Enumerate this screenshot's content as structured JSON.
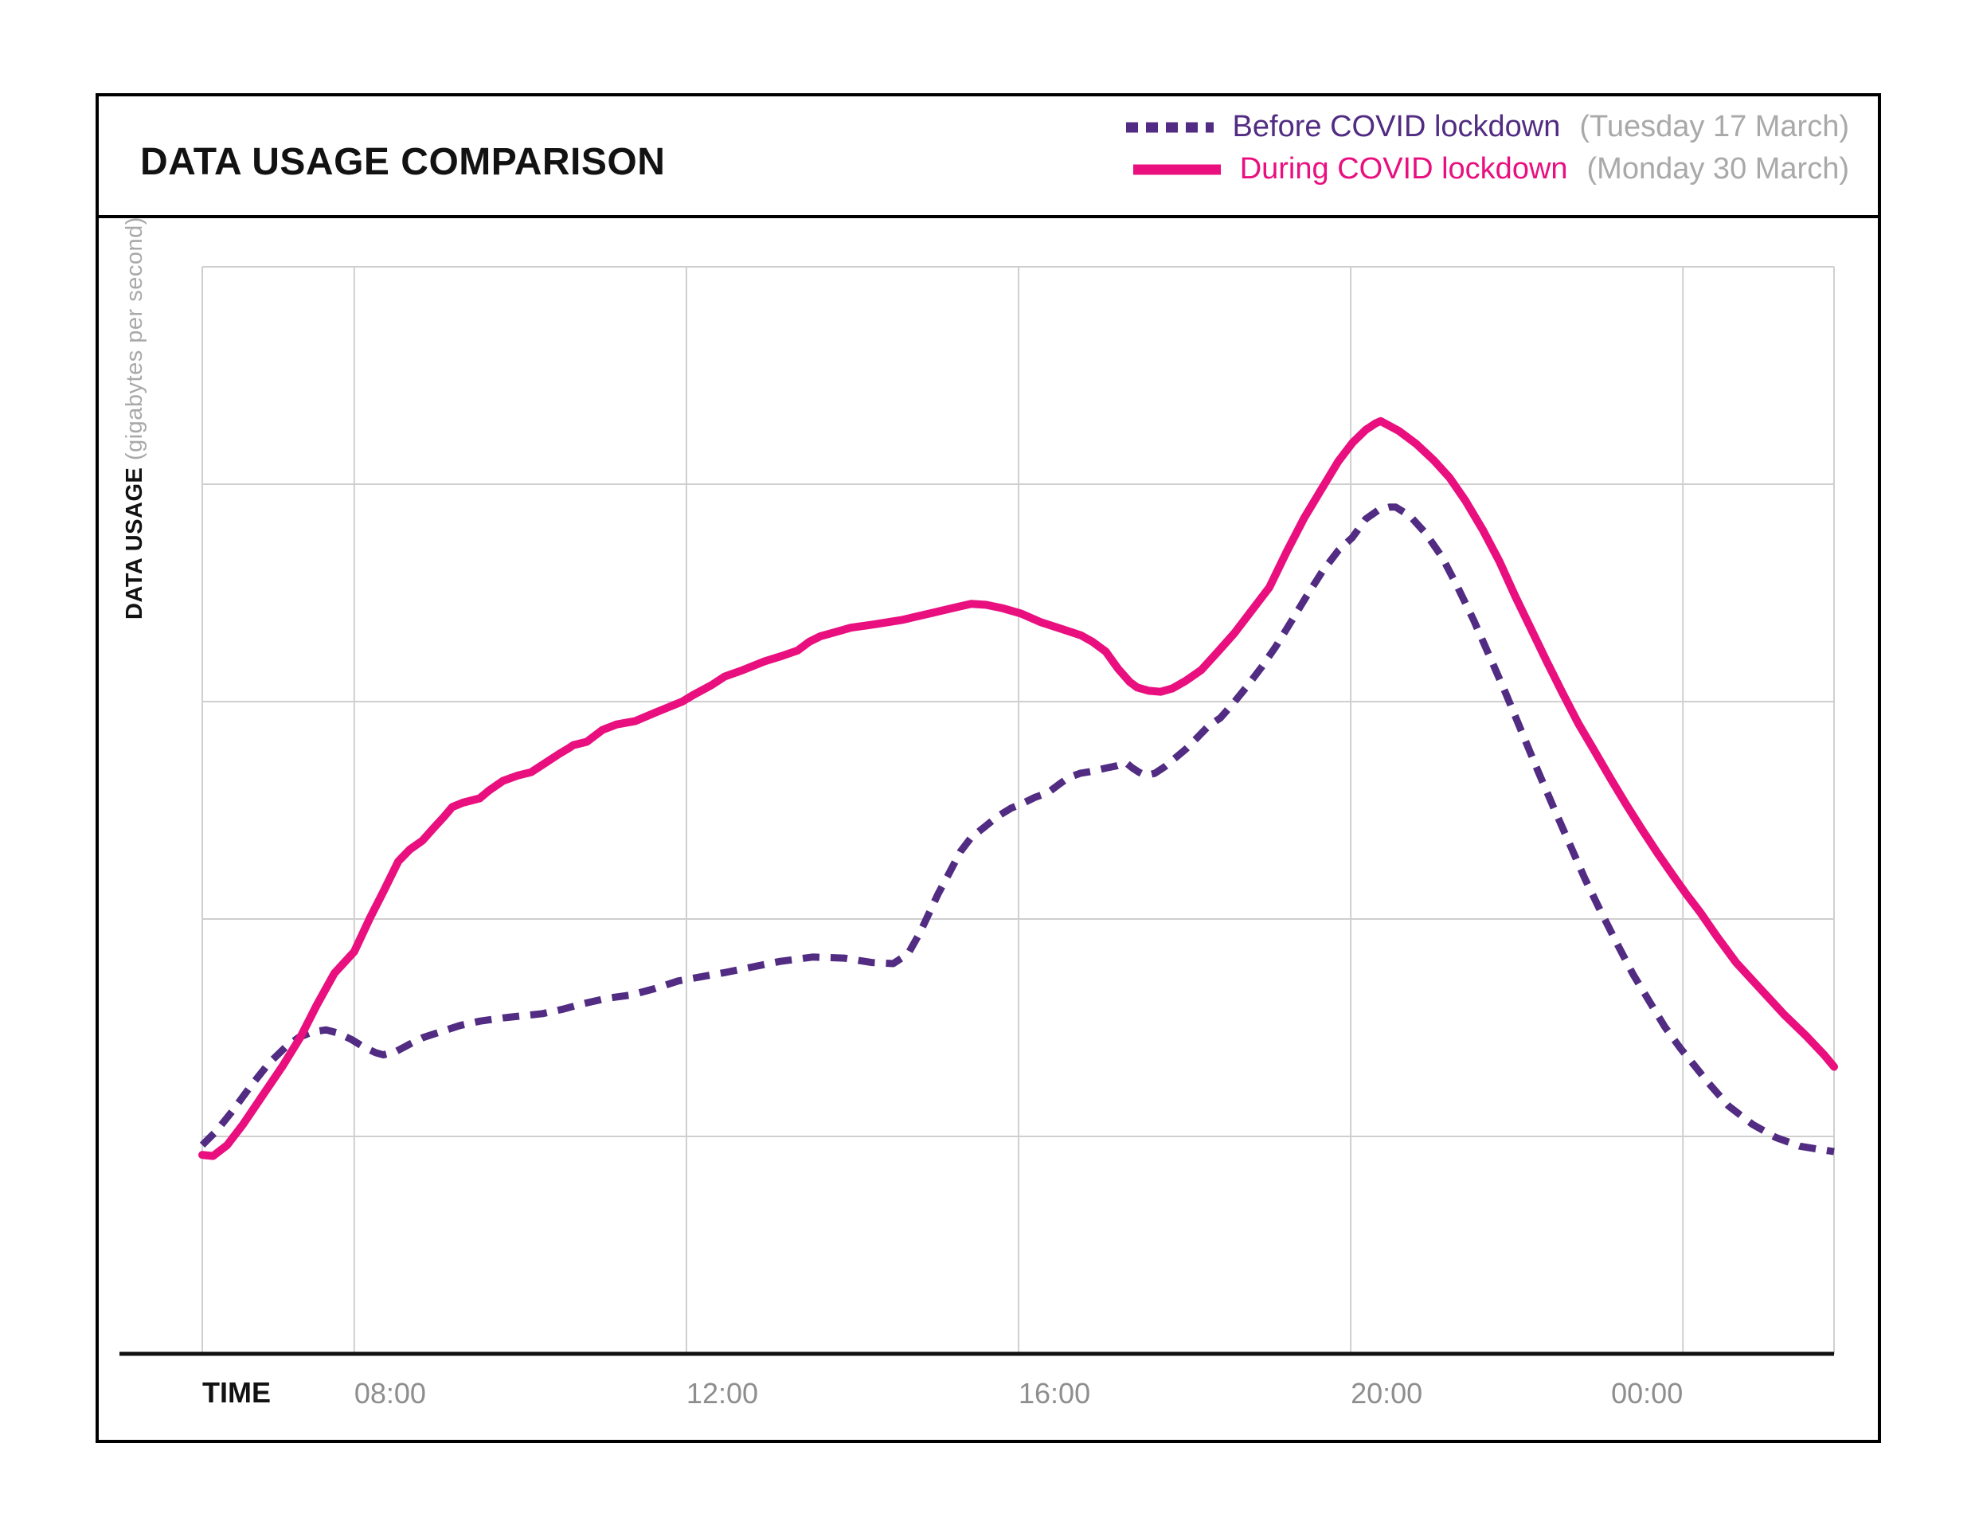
{
  "header": {
    "title": "DATA USAGE COMPARISON"
  },
  "legend": [
    {
      "label": "Before COVID lockdown",
      "date": "(Tuesday 17 March)",
      "style": "dashed",
      "color": "#512C82"
    },
    {
      "label": "During COVID lockdown",
      "date": "(Monday 30 March)",
      "style": "solid",
      "color": "#E90F7F"
    }
  ],
  "axes": {
    "x_title": "TIME",
    "y_title_main": "DATA USAGE",
    "y_title_sub": "(gigabytes per second)"
  },
  "colors": {
    "pink": "#E90F7F",
    "purple": "#512C82",
    "gray_text": "#A9A9A9",
    "tick_text": "#8E8E8E",
    "gridline": "#CFCFCF",
    "axis": "#111111",
    "border": "#000000"
  },
  "chart_data": {
    "type": "line",
    "title": "DATA USAGE COMPARISON",
    "xlabel": "TIME",
    "ylabel": "DATA USAGE (gigabytes per second)",
    "x_unit": "hour of day (24 = midnight, continues past midnight)",
    "y_unit": "relative data usage (0-100, unlabeled axis)",
    "x_range": [
      6.17,
      25.82
    ],
    "y_range": [
      0,
      100
    ],
    "grid": true,
    "y_gridlines": [
      20,
      40,
      60,
      80,
      100
    ],
    "legend_position": "top-right",
    "x_ticks": [
      {
        "hour": 8,
        "label": "08:00",
        "align": "left"
      },
      {
        "hour": 12,
        "label": "12:00",
        "align": "left"
      },
      {
        "hour": 16,
        "label": "16:00",
        "align": "left"
      },
      {
        "hour": 20,
        "label": "20:00",
        "align": "left"
      },
      {
        "hour": 24,
        "label": "00:00",
        "align": "right"
      }
    ],
    "series": [
      {
        "name": "Before COVID lockdown (Tuesday 17 March)",
        "style": "dashed",
        "color": "#512C82",
        "points": [
          [
            6.17,
            19.2
          ],
          [
            6.34,
            20.5
          ],
          [
            6.53,
            22.3
          ],
          [
            6.75,
            24.6
          ],
          [
            6.97,
            26.7
          ],
          [
            7.17,
            28.2
          ],
          [
            7.33,
            29.1
          ],
          [
            7.49,
            29.6
          ],
          [
            7.66,
            29.8
          ],
          [
            7.81,
            29.5
          ],
          [
            7.97,
            28.9
          ],
          [
            8.12,
            28.2
          ],
          [
            8.26,
            27.7
          ],
          [
            8.35,
            27.5
          ],
          [
            8.5,
            27.8
          ],
          [
            8.67,
            28.5
          ],
          [
            8.83,
            29.1
          ],
          [
            9.03,
            29.6
          ],
          [
            9.27,
            30.2
          ],
          [
            9.51,
            30.6
          ],
          [
            9.79,
            30.9
          ],
          [
            10.03,
            31.1
          ],
          [
            10.27,
            31.3
          ],
          [
            10.51,
            31.7
          ],
          [
            10.75,
            32.2
          ],
          [
            11.04,
            32.7
          ],
          [
            11.33,
            33
          ],
          [
            11.62,
            33.6
          ],
          [
            11.9,
            34.3
          ],
          [
            12.19,
            34.7
          ],
          [
            12.48,
            35.1
          ],
          [
            12.8,
            35.6
          ],
          [
            13.13,
            36.1
          ],
          [
            13.52,
            36.5
          ],
          [
            13.9,
            36.4
          ],
          [
            14.23,
            36
          ],
          [
            14.49,
            35.9
          ],
          [
            14.67,
            36.8
          ],
          [
            14.81,
            38.7
          ],
          [
            14.92,
            40.5
          ],
          [
            15.03,
            42.3
          ],
          [
            15.17,
            44.3
          ],
          [
            15.3,
            46.2
          ],
          [
            15.43,
            47.5
          ],
          [
            15.58,
            48.4
          ],
          [
            15.74,
            49.4
          ],
          [
            15.91,
            50.2
          ],
          [
            16.04,
            50.6
          ],
          [
            16.2,
            51.2
          ],
          [
            16.35,
            51.6
          ],
          [
            16.49,
            52.4
          ],
          [
            16.6,
            53
          ],
          [
            16.74,
            53.4
          ],
          [
            16.89,
            53.6
          ],
          [
            17.06,
            53.9
          ],
          [
            17.19,
            54.1
          ],
          [
            17.29,
            54.4
          ],
          [
            17.37,
            53.9
          ],
          [
            17.45,
            53.5
          ],
          [
            17.53,
            53.2
          ],
          [
            17.64,
            53.4
          ],
          [
            17.76,
            54
          ],
          [
            17.87,
            54.7
          ],
          [
            18.01,
            55.6
          ],
          [
            18.14,
            56.6
          ],
          [
            18.28,
            57.7
          ],
          [
            18.43,
            58.5
          ],
          [
            18.58,
            59.8
          ],
          [
            18.75,
            61.4
          ],
          [
            18.93,
            63.2
          ],
          [
            19.1,
            65.1
          ],
          [
            19.27,
            67.2
          ],
          [
            19.46,
            69.6
          ],
          [
            19.66,
            72
          ],
          [
            19.85,
            73.9
          ],
          [
            20.02,
            75.1
          ],
          [
            20.18,
            76.8
          ],
          [
            20.33,
            77.6
          ],
          [
            20.47,
            77.9
          ],
          [
            20.54,
            77.9
          ],
          [
            20.71,
            77.1
          ],
          [
            20.9,
            75.5
          ],
          [
            21.1,
            73.3
          ],
          [
            21.29,
            70.5
          ],
          [
            21.48,
            67.5
          ],
          [
            21.67,
            64.2
          ],
          [
            21.87,
            60.7
          ],
          [
            22.06,
            57.2
          ],
          [
            22.25,
            53.7
          ],
          [
            22.44,
            50.3
          ],
          [
            22.63,
            47
          ],
          [
            22.82,
            43.7
          ],
          [
            23.01,
            40.7
          ],
          [
            23.21,
            37.7
          ],
          [
            23.4,
            34.9
          ],
          [
            23.59,
            32.5
          ],
          [
            23.78,
            30.1
          ],
          [
            23.97,
            28.1
          ],
          [
            24.12,
            26.7
          ],
          [
            24.31,
            24.9
          ],
          [
            24.55,
            22.8
          ],
          [
            24.84,
            21.1
          ],
          [
            25.12,
            19.9
          ],
          [
            25.41,
            19.1
          ],
          [
            25.65,
            18.8
          ],
          [
            25.82,
            18.6
          ]
        ]
      },
      {
        "name": "During COVID lockdown (Monday 30 March)",
        "style": "solid",
        "color": "#E90F7F",
        "points": [
          [
            6.17,
            18.3
          ],
          [
            6.3,
            18.2
          ],
          [
            6.47,
            19.2
          ],
          [
            6.66,
            21.1
          ],
          [
            6.9,
            23.8
          ],
          [
            7.14,
            26.5
          ],
          [
            7.35,
            29.1
          ],
          [
            7.55,
            32.1
          ],
          [
            7.76,
            35
          ],
          [
            8,
            37
          ],
          [
            8.19,
            40.1
          ],
          [
            8.35,
            42.5
          ],
          [
            8.53,
            45.3
          ],
          [
            8.67,
            46.4
          ],
          [
            8.82,
            47.2
          ],
          [
            8.96,
            48.4
          ],
          [
            9.08,
            49.4
          ],
          [
            9.18,
            50.3
          ],
          [
            9.31,
            50.7
          ],
          [
            9.51,
            51.1
          ],
          [
            9.62,
            51.8
          ],
          [
            9.79,
            52.7
          ],
          [
            9.97,
            53.2
          ],
          [
            10.13,
            53.5
          ],
          [
            10.31,
            54.4
          ],
          [
            10.47,
            55.2
          ],
          [
            10.58,
            55.7
          ],
          [
            10.64,
            56
          ],
          [
            10.8,
            56.3
          ],
          [
            10.99,
            57.4
          ],
          [
            11.16,
            57.9
          ],
          [
            11.38,
            58.2
          ],
          [
            11.66,
            59.1
          ],
          [
            11.95,
            60
          ],
          [
            12.08,
            60.6
          ],
          [
            12.3,
            61.5
          ],
          [
            12.46,
            62.3
          ],
          [
            12.68,
            62.9
          ],
          [
            12.94,
            63.7
          ],
          [
            13.15,
            64.2
          ],
          [
            13.34,
            64.7
          ],
          [
            13.48,
            65.5
          ],
          [
            13.61,
            66
          ],
          [
            13.8,
            66.4
          ],
          [
            13.98,
            66.8
          ],
          [
            14.26,
            67.1
          ],
          [
            14.59,
            67.5
          ],
          [
            14.93,
            68.1
          ],
          [
            15.26,
            68.7
          ],
          [
            15.43,
            69
          ],
          [
            15.61,
            68.9
          ],
          [
            15.8,
            68.6
          ],
          [
            16.03,
            68.1
          ],
          [
            16.27,
            67.3
          ],
          [
            16.51,
            66.7
          ],
          [
            16.75,
            66.1
          ],
          [
            16.89,
            65.5
          ],
          [
            17.05,
            64.6
          ],
          [
            17.2,
            63
          ],
          [
            17.34,
            61.8
          ],
          [
            17.43,
            61.3
          ],
          [
            17.57,
            61
          ],
          [
            17.71,
            60.9
          ],
          [
            17.85,
            61.2
          ],
          [
            18.01,
            61.9
          ],
          [
            18.2,
            62.9
          ],
          [
            18.39,
            64.5
          ],
          [
            18.6,
            66.3
          ],
          [
            18.81,
            68.4
          ],
          [
            19.02,
            70.5
          ],
          [
            19.23,
            73.8
          ],
          [
            19.44,
            76.9
          ],
          [
            19.66,
            79.7
          ],
          [
            19.85,
            82.1
          ],
          [
            20.02,
            83.8
          ],
          [
            20.18,
            85
          ],
          [
            20.3,
            85.6
          ],
          [
            20.36,
            85.8
          ],
          [
            20.58,
            84.9
          ],
          [
            20.79,
            83.7
          ],
          [
            21,
            82.2
          ],
          [
            21.19,
            80.6
          ],
          [
            21.38,
            78.5
          ],
          [
            21.59,
            75.8
          ],
          [
            21.79,
            72.9
          ],
          [
            21.98,
            69.7
          ],
          [
            22.17,
            66.7
          ],
          [
            22.36,
            63.7
          ],
          [
            22.55,
            60.8
          ],
          [
            22.74,
            58
          ],
          [
            22.94,
            55.4
          ],
          [
            23.13,
            52.9
          ],
          [
            23.32,
            50.5
          ],
          [
            23.51,
            48.2
          ],
          [
            23.7,
            46
          ],
          [
            23.9,
            43.8
          ],
          [
            24.04,
            42.3
          ],
          [
            24.21,
            40.6
          ],
          [
            24.4,
            38.5
          ],
          [
            24.64,
            36
          ],
          [
            24.93,
            33.6
          ],
          [
            25.22,
            31.2
          ],
          [
            25.49,
            29.2
          ],
          [
            25.7,
            27.5
          ],
          [
            25.82,
            26.4
          ]
        ]
      }
    ]
  }
}
